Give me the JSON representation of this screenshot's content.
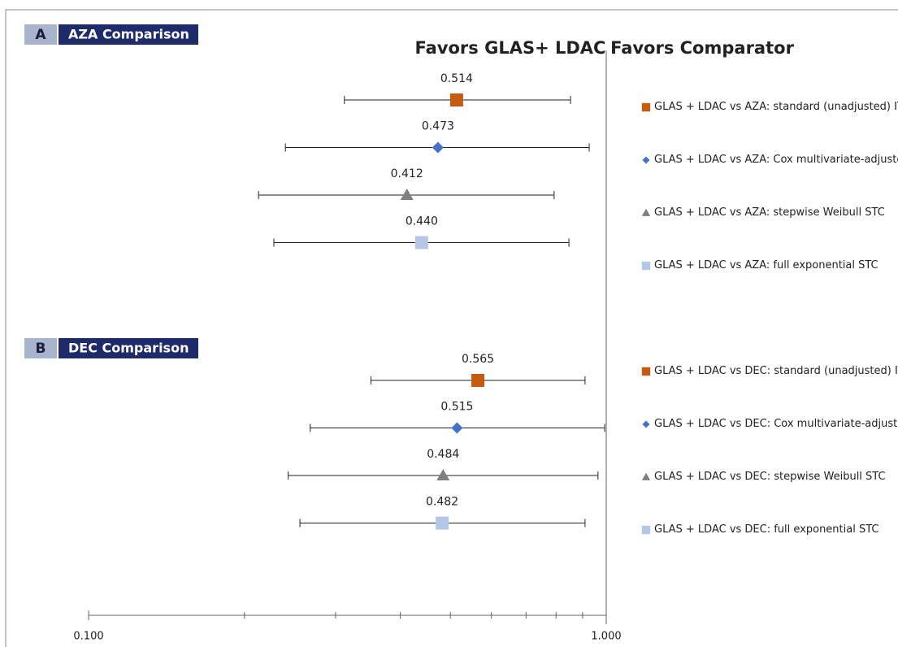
{
  "chart_data": {
    "type": "forest",
    "left_label": "Favors GLAS+ LDAC",
    "right_label": "Favors Comparator",
    "xscale": "log",
    "xlim": [
      0.1,
      1.0
    ],
    "xticks": [
      {
        "value": 0.1,
        "label": "0.100"
      },
      {
        "value": 1.0,
        "label": "1.000"
      }
    ],
    "xminor": [
      0.2,
      0.3,
      0.4,
      0.5,
      0.6,
      0.7,
      0.8,
      0.9
    ],
    "reference": 1.0,
    "panels": [
      {
        "letter": "A",
        "title": "AZA Comparison",
        "series": [
          {
            "name": "GLAS + LDAC vs AZA: standard (unadjusted) ITC",
            "color": "#c55a11",
            "marker": "square",
            "values": [
              0.514
            ],
            "value_labels": [
              "0.514"
            ],
            "lower": [
              0.312
            ],
            "upper": [
              0.853
            ]
          },
          {
            "name": "GLAS + LDAC vs AZA: Cox multivariate-adjusted ITC",
            "color": "#4472c4",
            "marker": "diamond",
            "values": [
              0.473
            ],
            "value_labels": [
              "0.473"
            ],
            "lower": [
              0.24
            ],
            "upper": [
              0.927
            ]
          },
          {
            "name": "GLAS + LDAC vs AZA: stepwise Weibull STC",
            "color": "#7f7f7f",
            "marker": "triangle",
            "values": [
              0.412
            ],
            "value_labels": [
              "0.412"
            ],
            "lower": [
              0.213
            ],
            "upper": [
              0.793
            ]
          },
          {
            "name": "GLAS + LDAC vs AZA: full exponential STC",
            "color": "#b4c7e7",
            "marker": "square",
            "values": [
              0.44
            ],
            "value_labels": [
              "0.440"
            ],
            "lower": [
              0.228
            ],
            "upper": [
              0.847
            ]
          }
        ]
      },
      {
        "letter": "B",
        "title": "DEC Comparison",
        "series": [
          {
            "name": "GLAS + LDAC vs DEC: standard (unadjusted) ITC",
            "color": "#c55a11",
            "marker": "square",
            "values": [
              0.565
            ],
            "value_labels": [
              "0.565"
            ],
            "lower": [
              0.351
            ],
            "upper": [
              0.91
            ]
          },
          {
            "name": "GLAS + LDAC vs DEC: Cox multivariate-adjusted ITC",
            "color": "#4472c4",
            "marker": "diamond",
            "values": [
              0.515
            ],
            "value_labels": [
              "0.515"
            ],
            "lower": [
              0.268
            ],
            "upper": [
              0.993
            ]
          },
          {
            "name": "GLAS + LDAC vs DEC: stepwise Weibull STC",
            "color": "#7f7f7f",
            "marker": "triangle",
            "values": [
              0.484
            ],
            "value_labels": [
              "0.484"
            ],
            "lower": [
              0.243
            ],
            "upper": [
              0.964
            ]
          },
          {
            "name": "GLAS + LDAC vs DEC: full exponential STC",
            "color": "#b4c7e7",
            "marker": "square",
            "values": [
              0.482
            ],
            "value_labels": [
              "0.482"
            ],
            "lower": [
              0.256
            ],
            "upper": [
              0.91
            ]
          }
        ]
      }
    ]
  }
}
